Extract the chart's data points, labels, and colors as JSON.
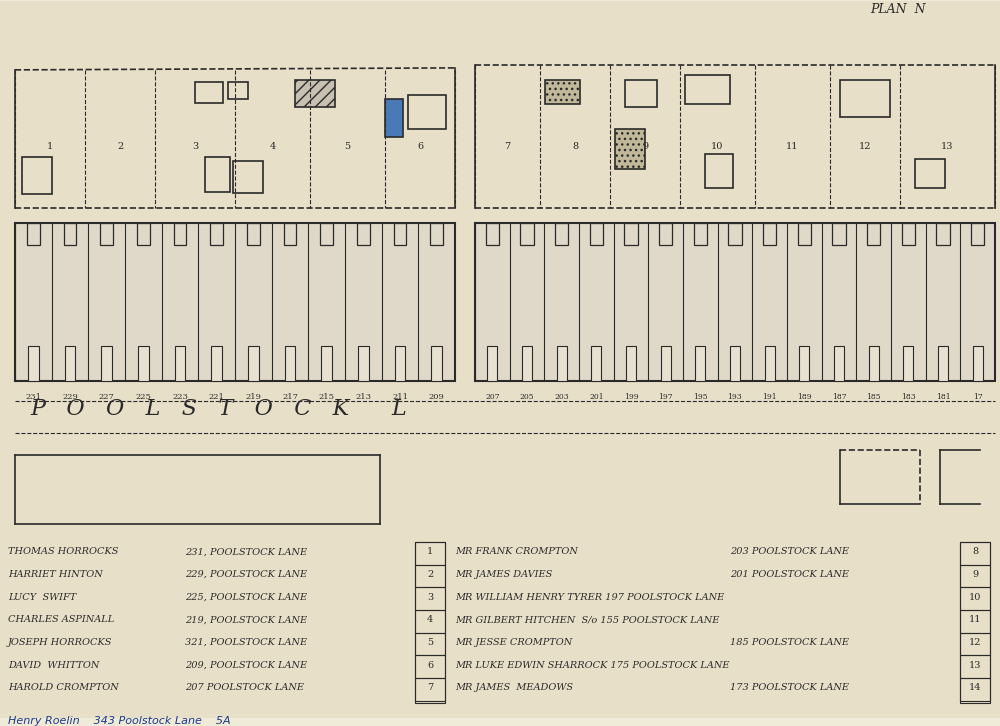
{
  "bg_color": "#f0ead8",
  "paper_color": "#e8dfc8",
  "line_color": "#2a2a2a",
  "title": "PLAN  N",
  "street_label": "P   O   O   L   S   T   O   C   K      L",
  "legend_entries_left": [
    [
      "THOMAS HORROCKS",
      "231, POOLSTOCK LANE",
      "1"
    ],
    [
      "HARRIET HINTON",
      "229, POOLSTOCK LANE",
      "2"
    ],
    [
      "LUCY  SWIFT",
      "225, POOLSTOCK LANE",
      "3"
    ],
    [
      "CHARLES ASPINALL",
      "219, POOLSTOCK LANE",
      "4"
    ],
    [
      "JOSEPH HORROCKS",
      "321, POOLSTOCK LANE",
      "5"
    ],
    [
      "DAVID  WHITTON",
      "209, POOLSTOCK LANE",
      "6"
    ],
    [
      "HAROLD CROMPTON",
      "207 POOLSTOCK LANE",
      "7"
    ]
  ],
  "legend_entries_right": [
    [
      "MR FRANK CROMPTON",
      "203 POOLSTOCK LANE",
      "8"
    ],
    [
      "MR JAMES DAVIES",
      "201 POOLSTOCK LANE",
      "9"
    ],
    [
      "MR WILLIAM HENRY TYRER 197 POOLSTOCK LANE",
      "",
      "10"
    ],
    [
      "MR GILBERT HITCHEN  S/o 155 POOLSTOCK LANE",
      "",
      "11"
    ],
    [
      "MR JESSE CROMPTON",
      "185 POOLSTOCK LANE",
      "12"
    ],
    [
      "MR LUKE EDWIN SHARROCK 175 POOLSTOCK LANE",
      "",
      "13"
    ],
    [
      "MR JAMES  MEADOWS",
      "173 POOLSTOCK LANE",
      "14"
    ]
  ],
  "handwritten_entry": "Henry Roelin    343 Poolstock Lane    5A"
}
